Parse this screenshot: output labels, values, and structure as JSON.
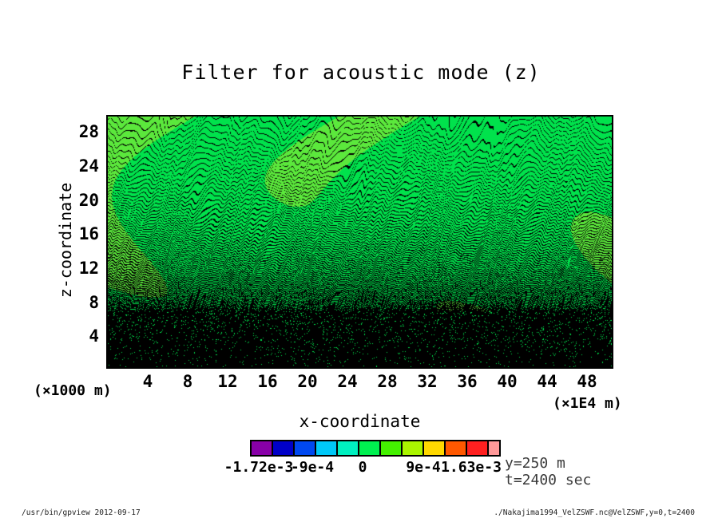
{
  "title": "Filter for acoustic mode (z)",
  "axes": {
    "y": {
      "label": "z-coordinate",
      "unit": "(×1000 m)",
      "ticks": [
        "28",
        "24",
        "20",
        "16",
        "12",
        "8",
        "4"
      ]
    },
    "x": {
      "label": "x-coordinate",
      "unit": "(×1E4 m)",
      "ticks": [
        "4",
        "8",
        "12",
        "16",
        "20",
        "24",
        "28",
        "32",
        "36",
        "40",
        "44",
        "48"
      ]
    }
  },
  "colorbar": {
    "labels": [
      "-1.72e-3",
      "-9e-4",
      "0",
      "9e-4",
      "1.63e-3"
    ],
    "colors": [
      "#8800A8",
      "#0000C8",
      "#0048F0",
      "#00C8F8",
      "#00F0C0",
      "#00F050",
      "#44F000",
      "#AAF500",
      "#FFD800",
      "#FF5800",
      "#FF2020",
      "#FF9898"
    ]
  },
  "annotations": {
    "y_slice": "y=250 m",
    "time": "t=2400 sec"
  },
  "footer": {
    "left": "/usr/bin/gpview  2012-09-17",
    "right": "./Nakajima1994_VelZSWF.nc@VelZSWF,y=0,t=2400"
  },
  "plot_colors": {
    "green_a": "#00E24C",
    "green_b": "#5BE83C",
    "contour_line": "#000000"
  },
  "chart_data": {
    "type": "heatmap",
    "title": "Filter for acoustic mode (z)",
    "xlabel": "x-coordinate",
    "ylabel": "z-coordinate",
    "x_unit": "×1E4 m",
    "y_unit": "×1000 m",
    "xlim": [
      0,
      50.5
    ],
    "ylim": [
      0,
      29.4
    ],
    "x_ticks": [
      4,
      8,
      12,
      16,
      20,
      24,
      28,
      32,
      36,
      40,
      44,
      48
    ],
    "y_ticks": [
      4,
      8,
      12,
      16,
      20,
      24,
      28
    ],
    "value_min": -0.00172,
    "value_max": 0.00163,
    "labeled_levels": [
      -0.00172,
      -0.0009,
      0,
      0.0009,
      0.00163
    ],
    "contour_interval": 0.0003,
    "palette": [
      "#8800A8",
      "#0000C8",
      "#0048F0",
      "#00C8F8",
      "#00F0C0",
      "#00F050",
      "#44F000",
      "#AAF500",
      "#FFD800",
      "#FF5800",
      "#FF2020",
      "#FF9898"
    ],
    "field": "VelZSWF (acoustic-mode-filtered vertical velocity)",
    "slice": "y=0, t=2400 sec",
    "grid": false,
    "legend_position": "bottom colorbar",
    "appearance": "dense wavy black contour lines over a near-zero green fill; contour density increases sharply toward z=0 where the field becomes nearly solid black with sparse green speckles"
  }
}
